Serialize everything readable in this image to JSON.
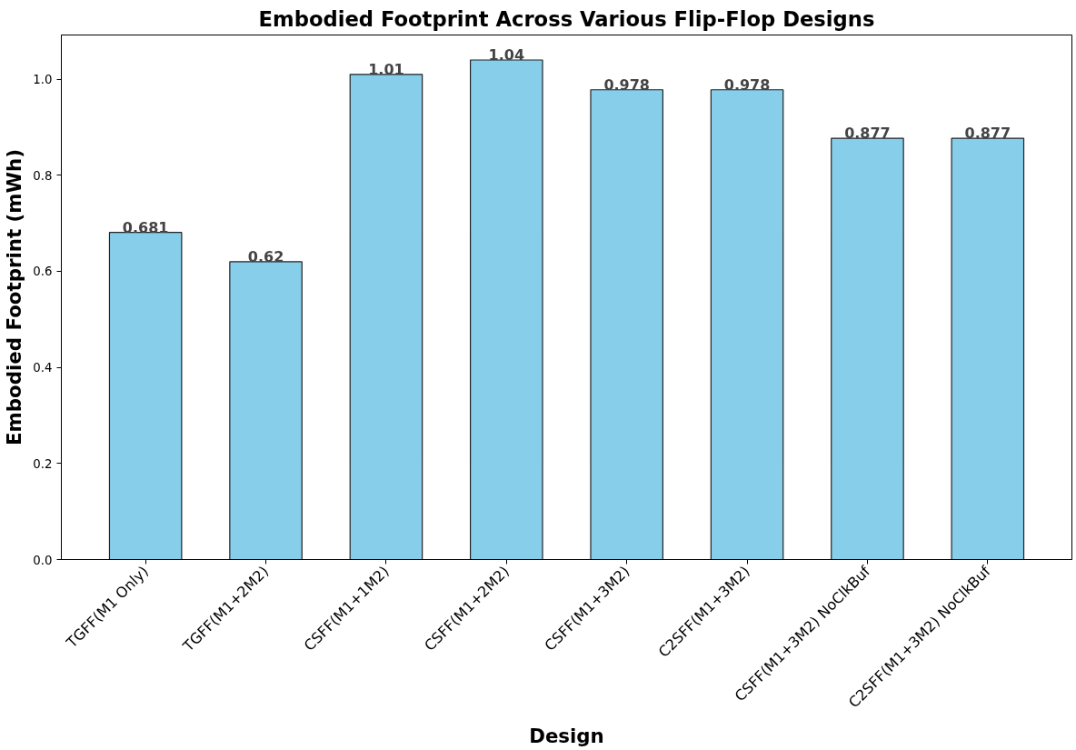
{
  "chart_data": {
    "type": "bar",
    "title": "Embodied Footprint Across Various Flip-Flop Designs",
    "xlabel": "Design",
    "ylabel": "Embodied Footprint (mWh)",
    "categories": [
      "TGFF(M1 Only)",
      "TGFF(M1+2M2)",
      "CSFF(M1+1M2)",
      "CSFF(M1+2M2)",
      "CSFF(M1+3M2)",
      "C2SFF(M1+3M2)",
      "CSFF(M1+3M2) NoClkBuf",
      "C2SFF(M1+3M2) NoClkBuf"
    ],
    "values": [
      0.681,
      0.62,
      1.01,
      1.04,
      0.978,
      0.978,
      0.877,
      0.877
    ],
    "color": "#87ceeb",
    "ylim": [
      0,
      1.092
    ],
    "yticks": [
      {
        "value": 0,
        "label": "0.0"
      },
      0.2,
      0.4,
      0.6,
      0.8,
      {
        "value": 1,
        "label": "1.0"
      }
    ],
    "data_labels": true,
    "grid": false
  }
}
